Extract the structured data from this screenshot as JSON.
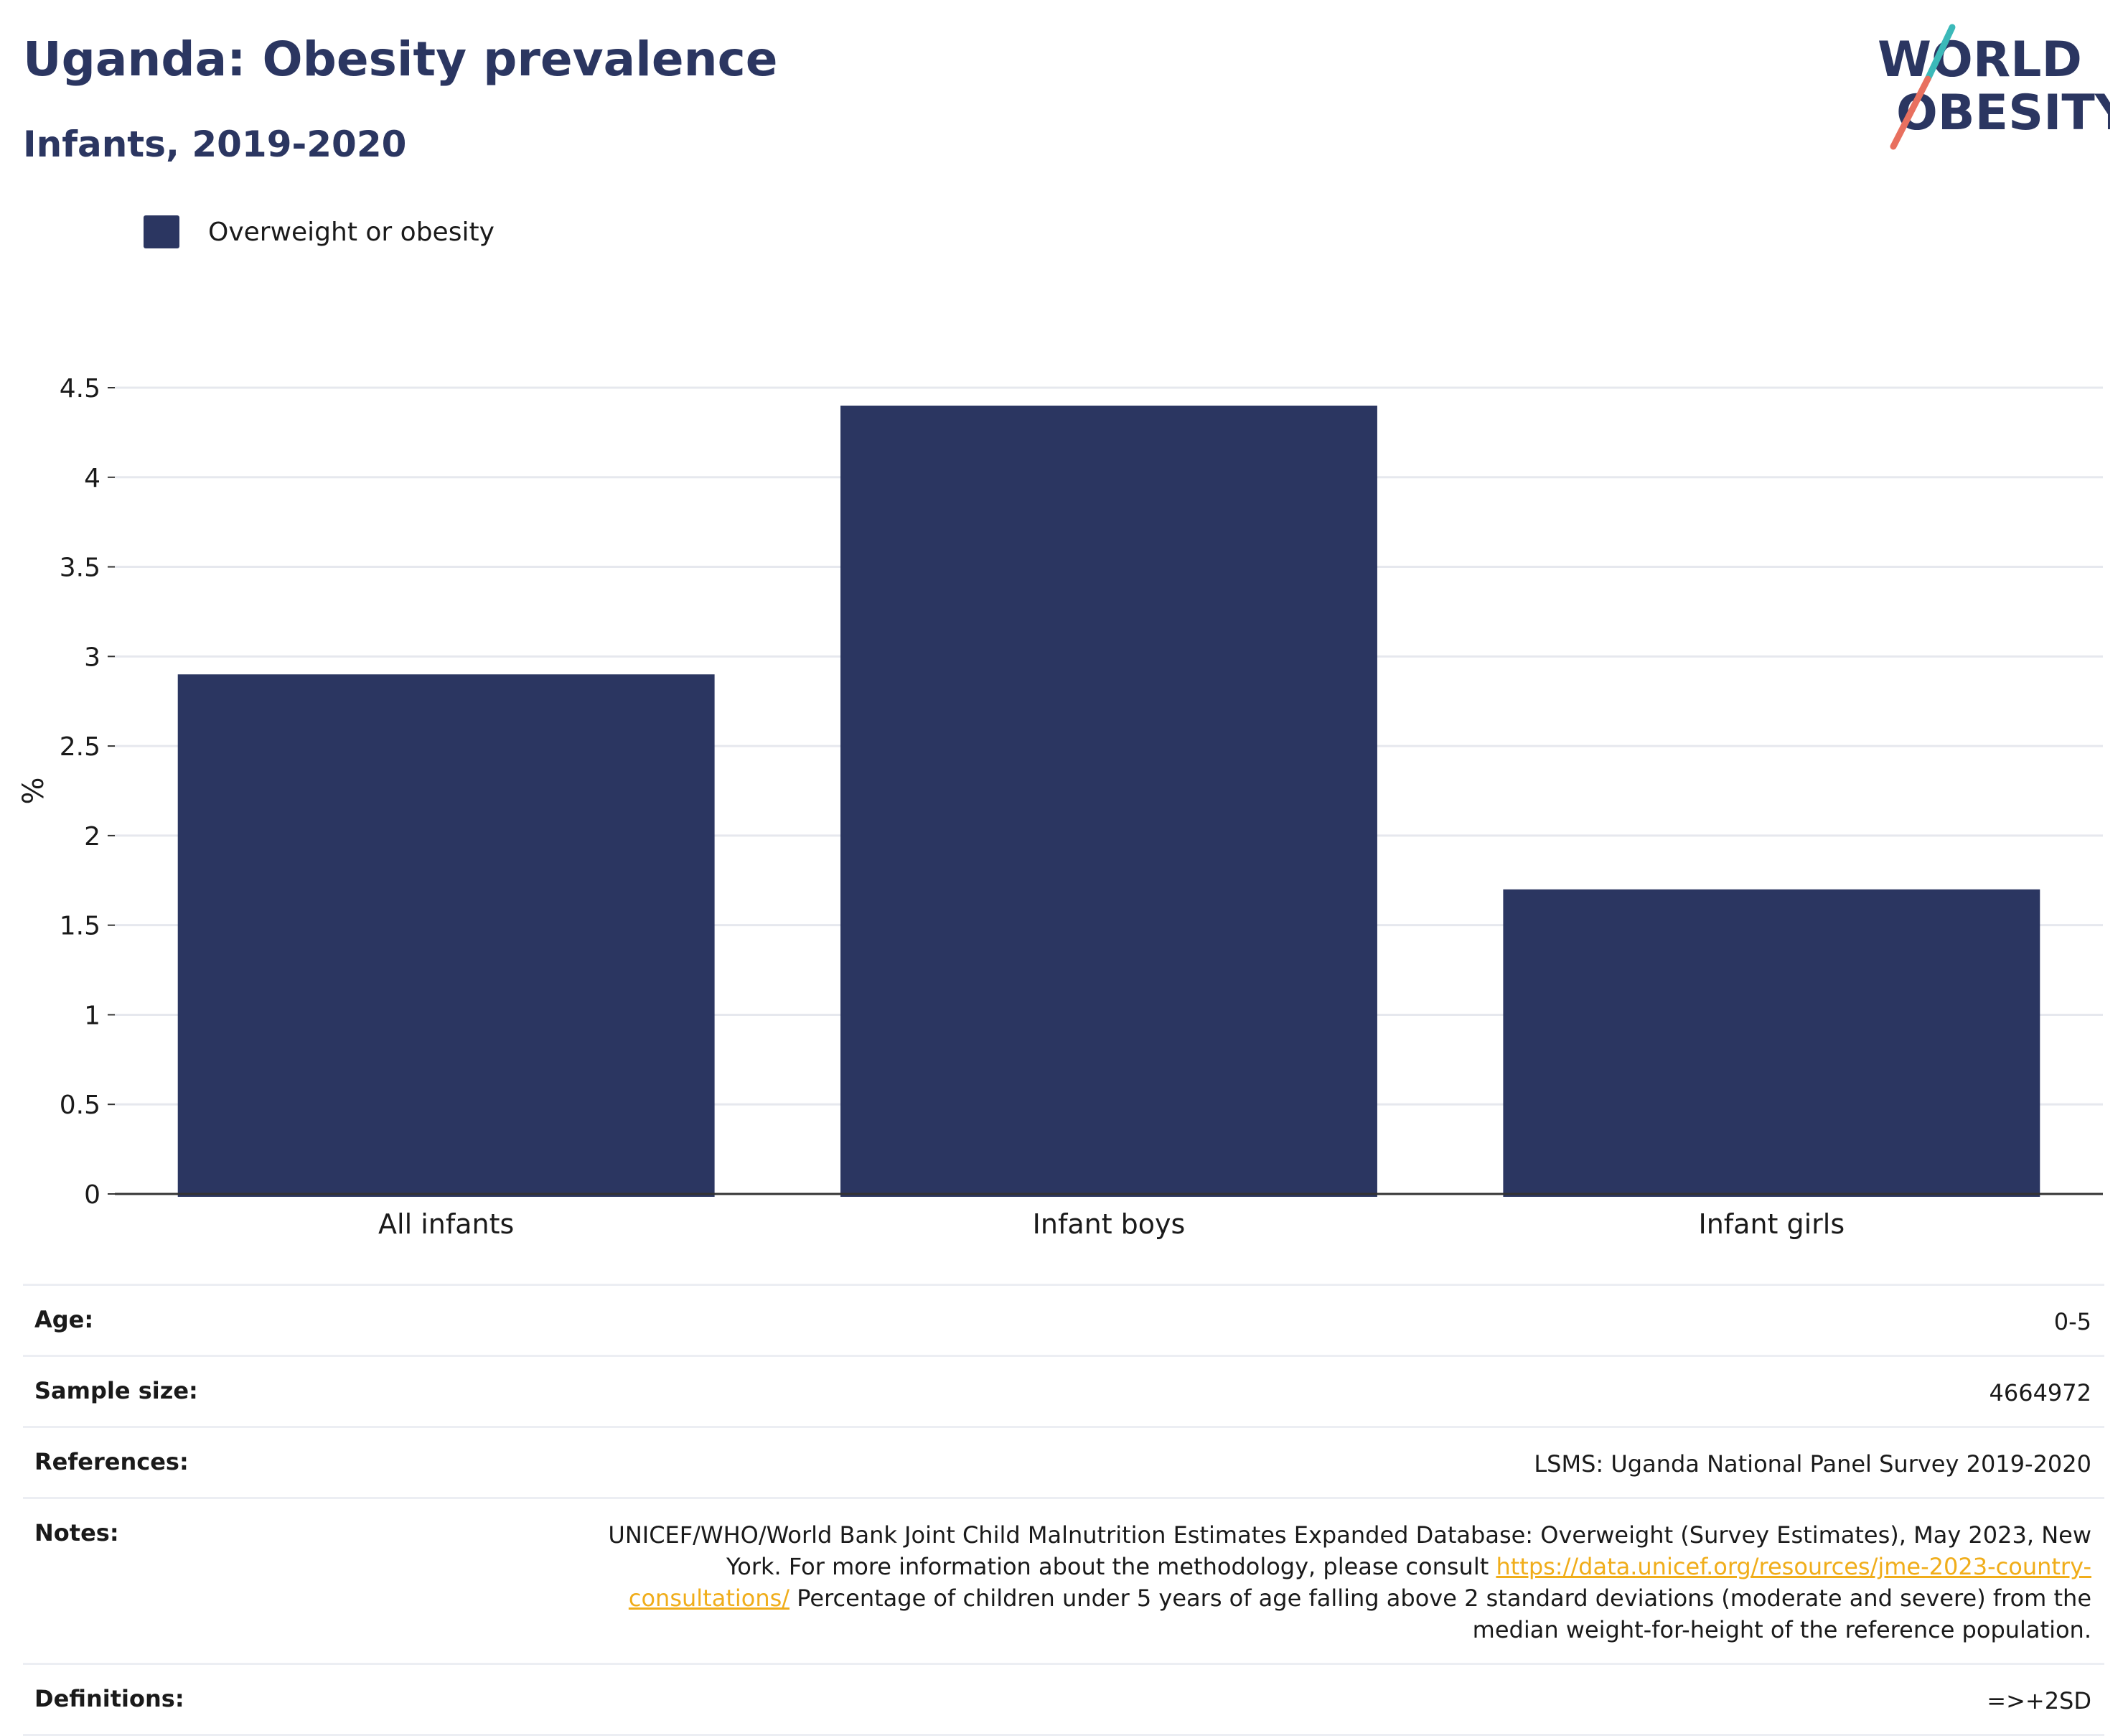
{
  "header": {
    "title": "Uganda: Obesity prevalence",
    "subtitle": "Infants, 2019-2020"
  },
  "logo": {
    "line1": "WORLD",
    "line2": "OBESITY",
    "colors": {
      "text": "#2b3661",
      "slash_teal": "#3bb9b9",
      "slash_coral": "#e8705f"
    }
  },
  "colors": {
    "bar": "#2b3661",
    "grid": "#e6e8ee",
    "axis": "#333333"
  },
  "chart_data": {
    "type": "bar",
    "categories": [
      "All infants",
      "Infant boys",
      "Infant girls"
    ],
    "series": [
      {
        "name": "Overweight or obesity",
        "values": [
          2.9,
          4.4,
          1.7
        ]
      }
    ],
    "title": "",
    "xlabel": "",
    "ylabel": "%",
    "ylim": [
      0,
      4.5
    ],
    "yticks": [
      0,
      0.5,
      1,
      1.5,
      2,
      2.5,
      3,
      3.5,
      4,
      4.5
    ],
    "ytick_labels": [
      "0",
      "0.5",
      "1",
      "1.5",
      "2",
      "2.5",
      "3",
      "3.5",
      "4",
      "4.5"
    ],
    "grid": true,
    "legend": "top-left"
  },
  "info": {
    "age": {
      "label": "Age:",
      "value": "0-5"
    },
    "sample_size": {
      "label": "Sample size:",
      "value": "4664972"
    },
    "references": {
      "label": "References:",
      "value": "LSMS: Uganda National Panel Survey 2019-2020"
    },
    "notes": {
      "label": "Notes:",
      "text_before": "UNICEF/WHO/World Bank Joint Child Malnutrition Estimates Expanded Database: Overweight (Survey Estimates), May 2023, New York. For more information about the methodology, please consult ",
      "link": "https://data.unicef.org/resources/jme-2023-country-consultations/",
      "text_after": " Percentage of children under 5 years of age falling above 2 standard deviations (moderate and severe) from the median weight-for-height of the reference population."
    },
    "definitions": {
      "label": "Definitions:",
      "value": "=>+2SD"
    }
  }
}
